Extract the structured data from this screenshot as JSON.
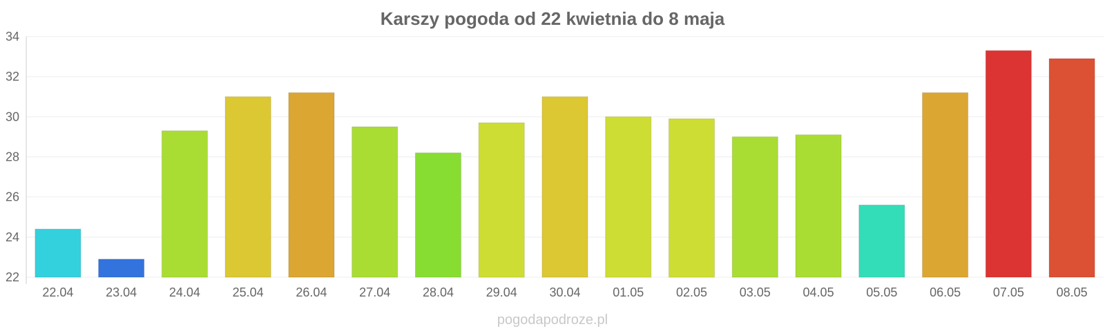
{
  "chart_data": {
    "type": "bar",
    "title": "Karszy pogoda od 22 kwietnia do 8 maja",
    "xlabel": "",
    "ylabel": "",
    "ylim": [
      22,
      34
    ],
    "yticks": [
      22,
      24,
      26,
      28,
      30,
      32,
      34
    ],
    "grid": true,
    "categories": [
      "22.04",
      "23.04",
      "24.04",
      "25.04",
      "26.04",
      "27.04",
      "28.04",
      "29.04",
      "30.04",
      "01.05",
      "02.05",
      "03.05",
      "04.05",
      "05.05",
      "06.05",
      "07.05",
      "08.05"
    ],
    "values": [
      24.4,
      22.9,
      29.3,
      31.0,
      31.2,
      29.5,
      28.2,
      29.7,
      31.0,
      30.0,
      29.9,
      29.0,
      29.1,
      25.6,
      31.2,
      33.3,
      32.9
    ],
    "colors": [
      "#33d1de",
      "#3373de",
      "#aadd33",
      "#dcc833",
      "#dca633",
      "#aadd33",
      "#88dd33",
      "#cedd33",
      "#dcc833",
      "#cedd33",
      "#cedd33",
      "#aadd33",
      "#aadd33",
      "#33ddb8",
      "#dca633",
      "#dc3333",
      "#dc5033"
    ]
  },
  "watermark": "pogodapodroze.pl"
}
